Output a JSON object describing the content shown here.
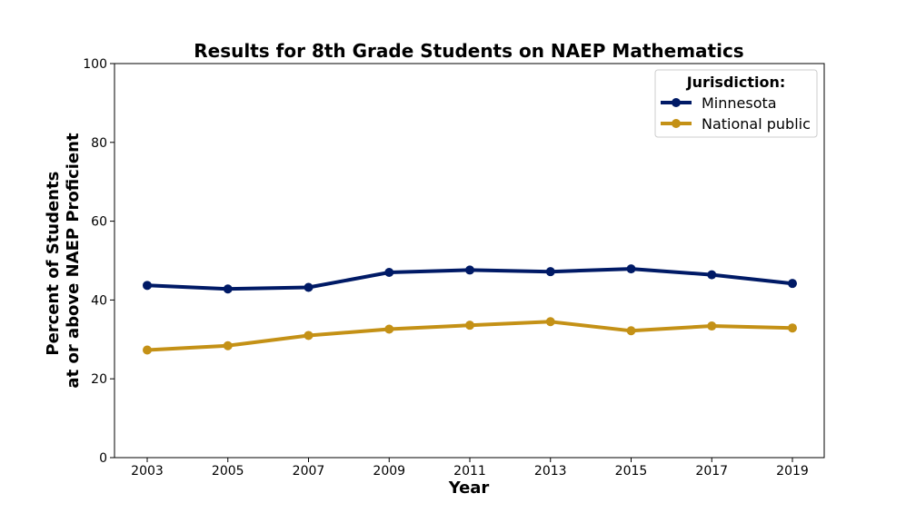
{
  "chart_data": {
    "type": "line",
    "title": "Results for 8th Grade Students on NAEP Mathematics",
    "xlabel": "Year",
    "ylabel_line1": "Percent of Students",
    "ylabel_line2": "at or above NAEP Proficient",
    "x": [
      "2003",
      "2005",
      "2007",
      "2009",
      "2011",
      "2013",
      "2015",
      "2017",
      "2019"
    ],
    "ylim": [
      0,
      100
    ],
    "yticks": [
      "0",
      "20",
      "40",
      "60",
      "80",
      "100"
    ],
    "grid": false,
    "legend": {
      "title": "Jurisdiction:",
      "placement": "top-right"
    },
    "series": [
      {
        "name": "Minnesota",
        "color": "#001a66",
        "values": [
          43.7,
          42.8,
          43.2,
          47.0,
          47.6,
          47.2,
          47.9,
          46.4,
          44.2
        ]
      },
      {
        "name": "National public",
        "color": "#c49116",
        "values": [
          27.3,
          28.4,
          31.0,
          32.6,
          33.6,
          34.5,
          32.2,
          33.4,
          32.9
        ]
      }
    ]
  }
}
